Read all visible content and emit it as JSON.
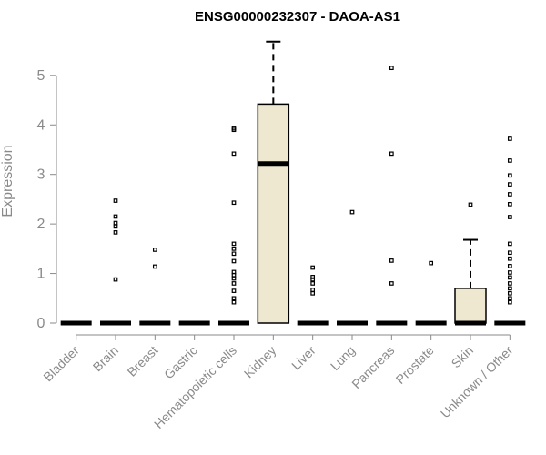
{
  "chart_data": {
    "type": "boxplot",
    "title": "ENSG00000232307 - DAOA-AS1",
    "xlabel": "",
    "ylabel": "Expression",
    "ylim": [
      0,
      5.75
    ],
    "yticks": [
      0,
      1,
      2,
      3,
      4,
      5
    ],
    "box_color": "#EFE8D0",
    "categories": [
      "Bladder",
      "Brain",
      "Breast",
      "Gastric",
      "Hematopoietic cells",
      "Kidney",
      "Liver",
      "Lung",
      "Pancreas",
      "Prostate",
      "Skin",
      "Unknown / Other"
    ],
    "boxes": [
      {
        "q1": 0,
        "median": 0,
        "q3": 0,
        "whisker_low": 0,
        "whisker_high": 0,
        "outliers": []
      },
      {
        "q1": 0,
        "median": 0,
        "q3": 0,
        "whisker_low": 0,
        "whisker_high": 0,
        "outliers": [
          0.88,
          1.83,
          1.95,
          2.02,
          2.15,
          2.47
        ]
      },
      {
        "q1": 0,
        "median": 0,
        "q3": 0,
        "whisker_low": 0,
        "whisker_high": 0,
        "outliers": [
          1.14,
          1.48
        ]
      },
      {
        "q1": 0,
        "median": 0,
        "q3": 0,
        "whisker_low": 0,
        "whisker_high": 0,
        "outliers": []
      },
      {
        "q1": 0,
        "median": 0,
        "q3": 0,
        "whisker_low": 0,
        "whisker_high": 0,
        "outliers": [
          0.42,
          0.5,
          0.65,
          0.8,
          0.9,
          0.97,
          1.03,
          1.25,
          1.4,
          1.5,
          1.6,
          2.43,
          3.42,
          3.9,
          3.93
        ]
      },
      {
        "q1": 0,
        "median": 3.22,
        "q3": 4.42,
        "whisker_low": 0,
        "whisker_high": 5.68,
        "outliers": []
      },
      {
        "q1": 0,
        "median": 0,
        "q3": 0,
        "whisker_low": 0,
        "whisker_high": 0,
        "outliers": [
          0.6,
          0.67,
          0.8,
          0.88,
          0.93,
          1.12
        ]
      },
      {
        "q1": 0,
        "median": 0,
        "q3": 0,
        "whisker_low": 0,
        "whisker_high": 0,
        "outliers": [
          2.24
        ]
      },
      {
        "q1": 0,
        "median": 0,
        "q3": 0,
        "whisker_low": 0,
        "whisker_high": 0,
        "outliers": [
          0.8,
          1.26,
          3.42,
          5.15
        ]
      },
      {
        "q1": 0,
        "median": 0,
        "q3": 0,
        "whisker_low": 0,
        "whisker_high": 0,
        "outliers": [
          1.21
        ]
      },
      {
        "q1": 0,
        "median": 0,
        "q3": 0.7,
        "whisker_low": 0,
        "whisker_high": 1.68,
        "outliers": [
          2.39
        ]
      },
      {
        "q1": 0,
        "median": 0,
        "q3": 0,
        "whisker_low": 0,
        "whisker_high": 0,
        "outliers": [
          0.42,
          0.5,
          0.6,
          0.7,
          0.8,
          0.92,
          1.02,
          1.15,
          1.3,
          1.42,
          1.6,
          2.14,
          2.4,
          2.6,
          2.8,
          2.98,
          3.28,
          3.72
        ]
      }
    ]
  }
}
